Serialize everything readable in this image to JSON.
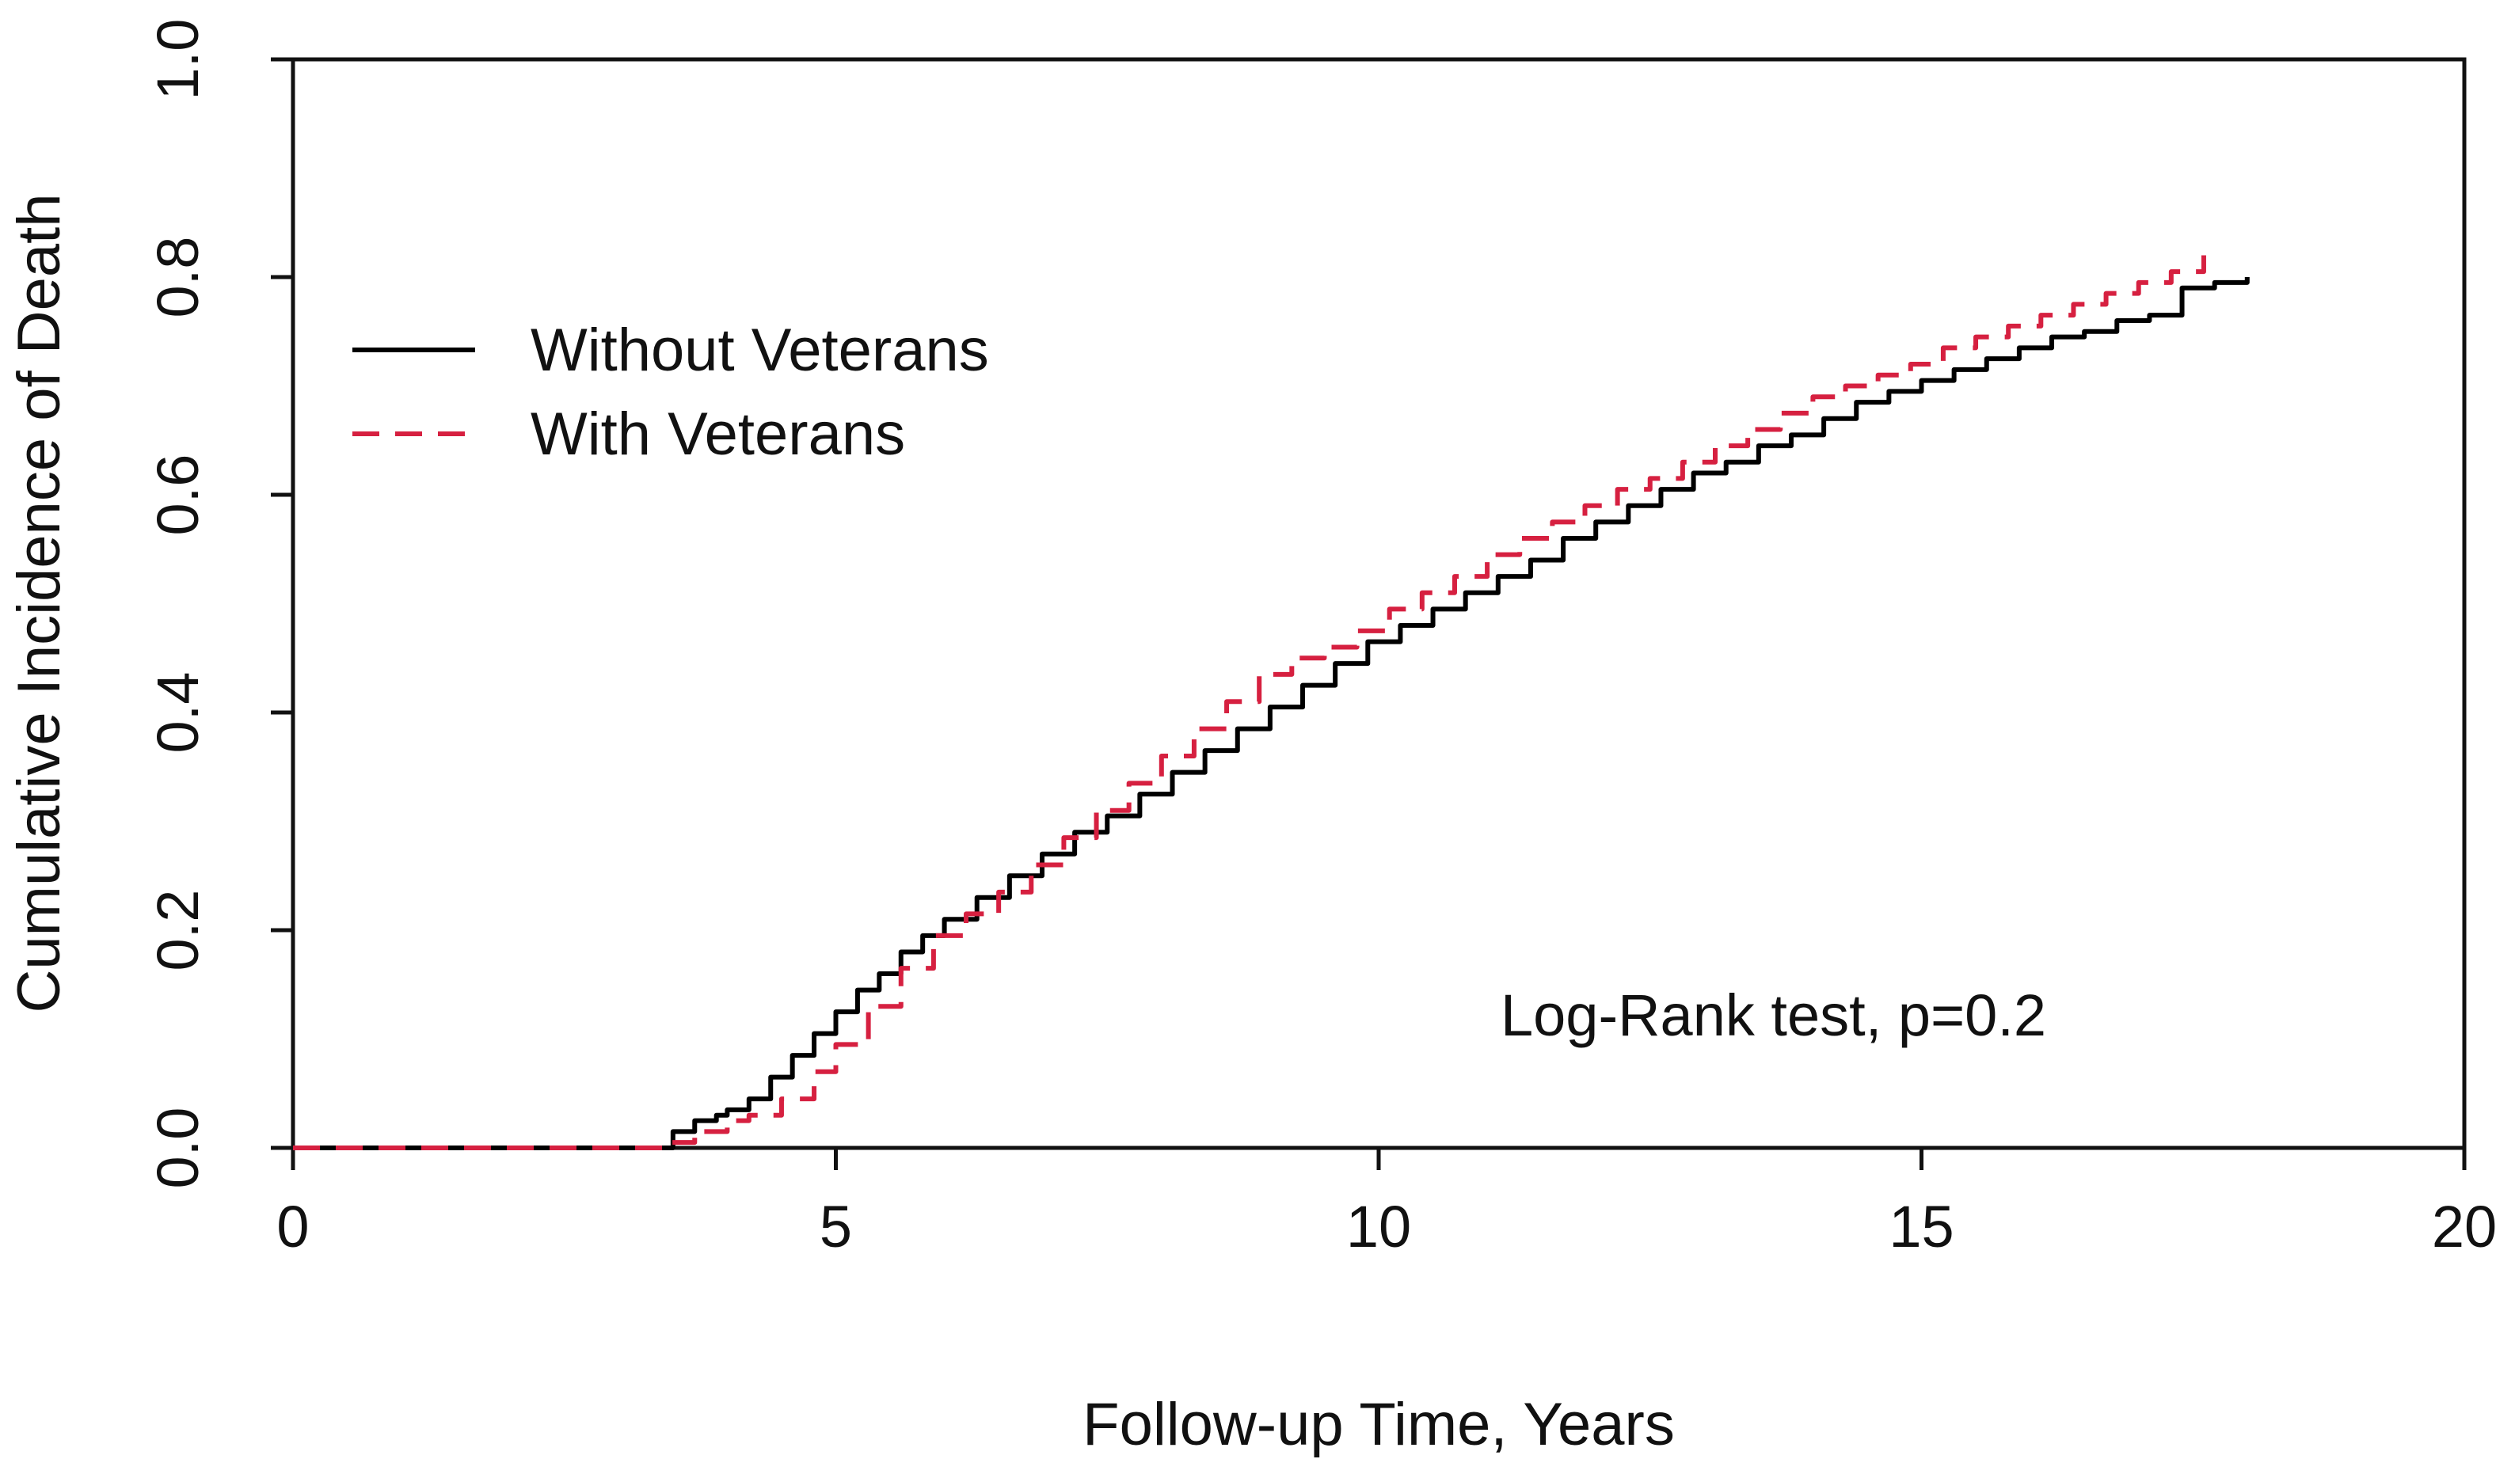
{
  "chart_data": {
    "type": "line",
    "title": "",
    "xlabel": "Follow-up Time, Years",
    "ylabel": "Cumulative Incidence of Death",
    "xlim": [
      0,
      20
    ],
    "ylim": [
      0,
      1
    ],
    "x_ticks": [
      0,
      5,
      10,
      15,
      20
    ],
    "y_ticks": [
      0.0,
      0.2,
      0.4,
      0.6,
      0.8,
      1.0
    ],
    "x_tick_labels": [
      "0",
      "5",
      "10",
      "15",
      "20"
    ],
    "y_tick_labels": [
      "0.0",
      "0.2",
      "0.4",
      "0.6",
      "0.8",
      "1.0"
    ],
    "grid": false,
    "legend_position": "top-left",
    "annotation": "Log-Rank test, p=0.2",
    "series": [
      {
        "name": "Without Veterans",
        "color": "#000000",
        "style": "solid",
        "x": [
          0,
          3.0,
          3.2,
          3.5,
          3.7,
          3.9,
          4.0,
          4.2,
          4.4,
          4.6,
          4.8,
          5.0,
          5.2,
          5.4,
          5.6,
          5.8,
          6.0,
          6.3,
          6.6,
          6.9,
          7.2,
          7.5,
          7.8,
          8.1,
          8.4,
          8.7,
          9.0,
          9.3,
          9.6,
          9.9,
          10.2,
          10.5,
          10.8,
          11.1,
          11.4,
          11.7,
          12.0,
          12.3,
          12.6,
          12.9,
          13.2,
          13.5,
          13.8,
          14.1,
          14.4,
          14.7,
          15.0,
          15.3,
          15.6,
          15.9,
          16.2,
          16.5,
          16.8,
          17.1,
          17.4,
          17.7,
          18.0
        ],
        "values": [
          0.0,
          0.0,
          0.0,
          0.015,
          0.025,
          0.03,
          0.035,
          0.045,
          0.065,
          0.085,
          0.105,
          0.125,
          0.145,
          0.16,
          0.18,
          0.195,
          0.21,
          0.23,
          0.25,
          0.27,
          0.29,
          0.305,
          0.325,
          0.345,
          0.365,
          0.385,
          0.405,
          0.425,
          0.445,
          0.465,
          0.48,
          0.495,
          0.51,
          0.525,
          0.54,
          0.56,
          0.575,
          0.59,
          0.605,
          0.62,
          0.63,
          0.645,
          0.655,
          0.67,
          0.685,
          0.695,
          0.705,
          0.715,
          0.725,
          0.735,
          0.745,
          0.75,
          0.76,
          0.765,
          0.79,
          0.795,
          0.8
        ]
      },
      {
        "name": "With Veterans",
        "color": "#d62040",
        "style": "dashed",
        "x": [
          0,
          3.1,
          3.4,
          3.7,
          4.0,
          4.2,
          4.5,
          4.8,
          5.0,
          5.3,
          5.6,
          5.9,
          6.2,
          6.5,
          6.8,
          7.1,
          7.4,
          7.7,
          8.0,
          8.3,
          8.6,
          8.9,
          9.2,
          9.5,
          9.8,
          10.1,
          10.4,
          10.7,
          11.0,
          11.3,
          11.6,
          11.9,
          12.2,
          12.5,
          12.8,
          13.1,
          13.4,
          13.7,
          14.0,
          14.3,
          14.6,
          14.9,
          15.2,
          15.5,
          15.8,
          16.1,
          16.4,
          16.7,
          17.0,
          17.3,
          17.6
        ],
        "values": [
          0.0,
          0.0,
          0.005,
          0.015,
          0.025,
          0.03,
          0.045,
          0.07,
          0.095,
          0.13,
          0.165,
          0.195,
          0.215,
          0.235,
          0.26,
          0.285,
          0.31,
          0.335,
          0.36,
          0.385,
          0.41,
          0.435,
          0.45,
          0.46,
          0.475,
          0.495,
          0.51,
          0.525,
          0.545,
          0.56,
          0.575,
          0.59,
          0.605,
          0.615,
          0.63,
          0.645,
          0.66,
          0.675,
          0.69,
          0.7,
          0.71,
          0.72,
          0.735,
          0.745,
          0.755,
          0.765,
          0.775,
          0.785,
          0.795,
          0.805,
          0.82
        ]
      }
    ]
  }
}
